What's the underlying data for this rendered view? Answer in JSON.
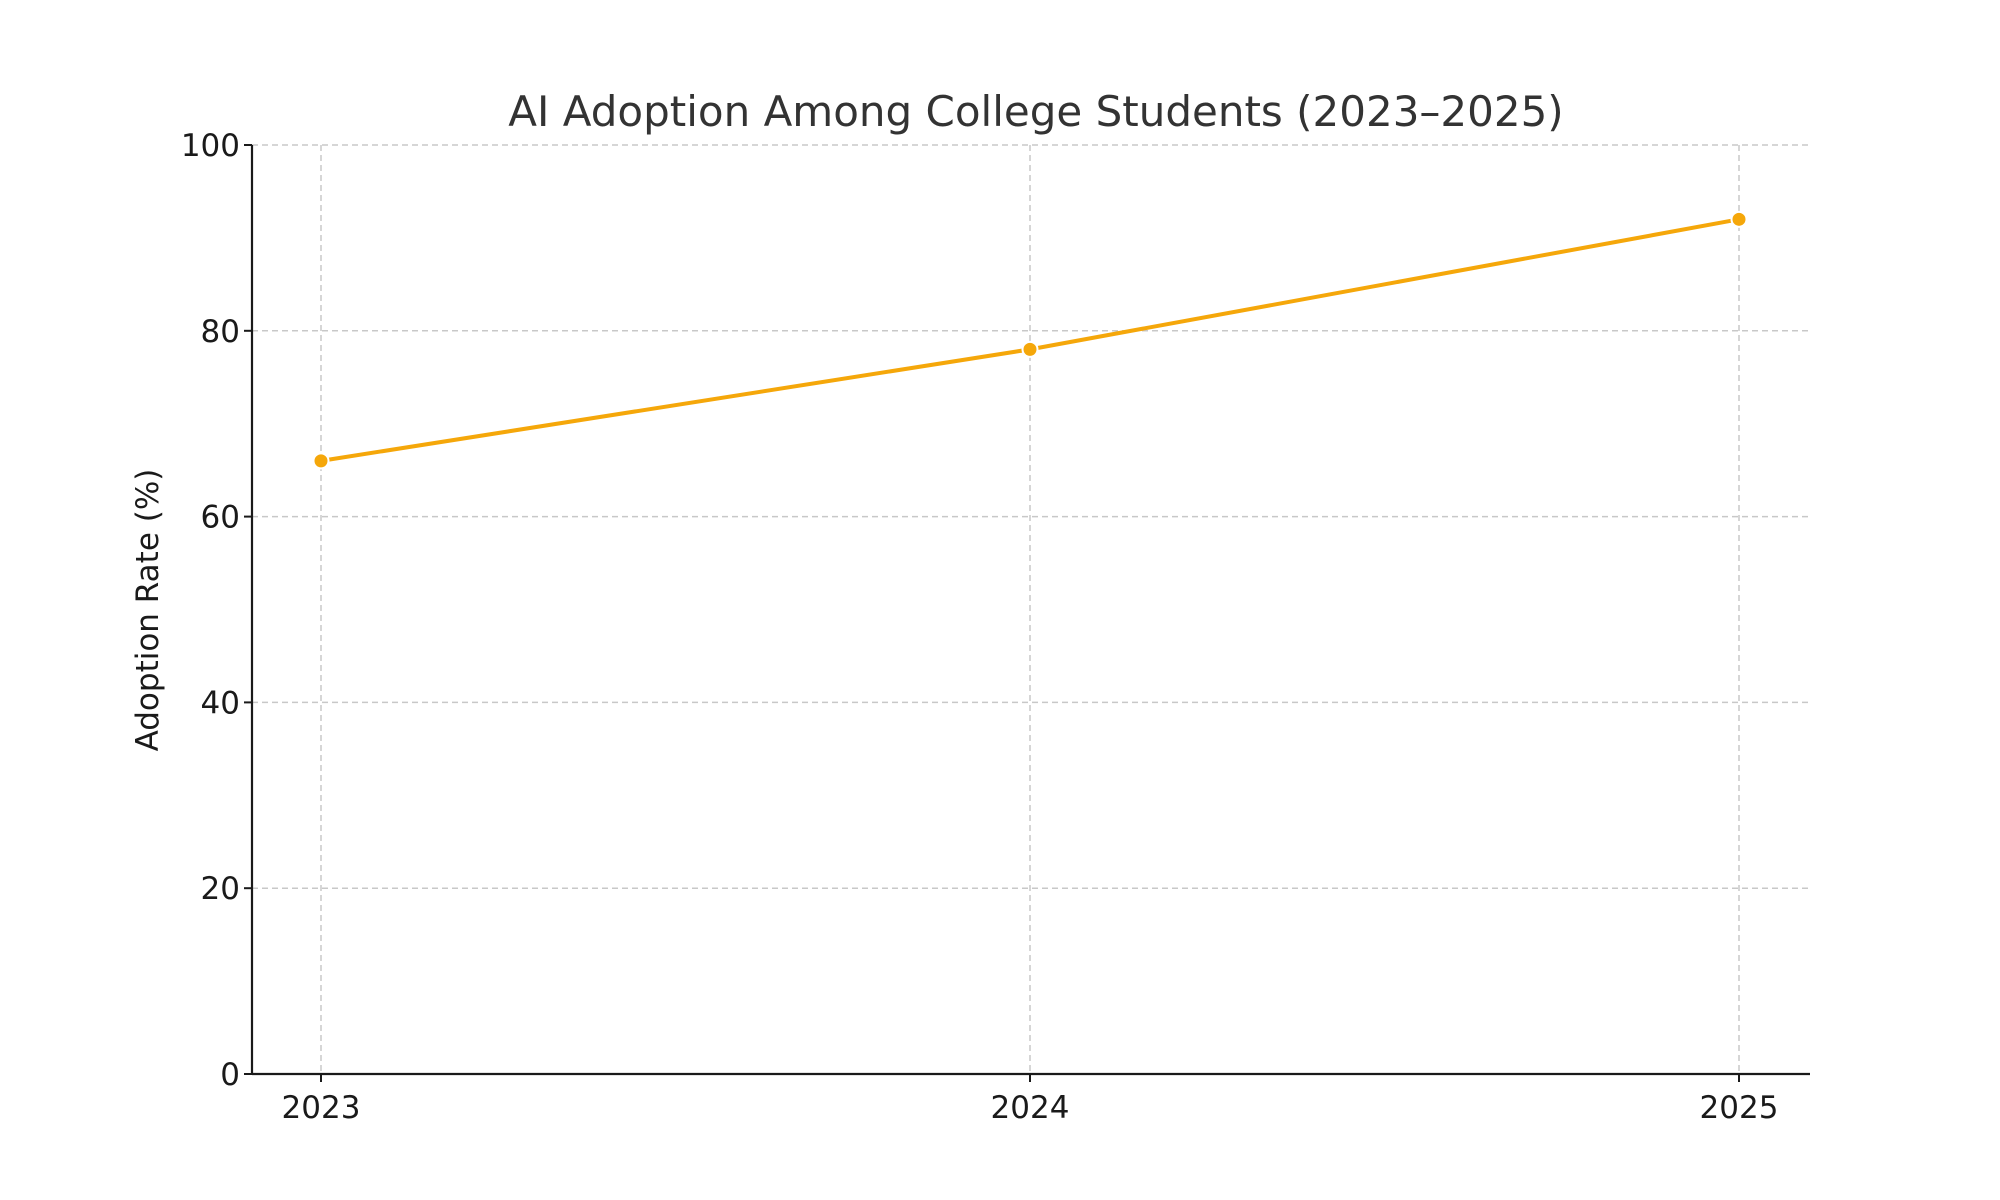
{
  "chart_data": {
    "type": "line",
    "title": "AI Adoption Among College Students (2023–2025)",
    "xlabel": "",
    "ylabel": "Adoption Rate (%)",
    "x": [
      "2023",
      "2024",
      "2025"
    ],
    "ylim": [
      0,
      100
    ],
    "yticks": [
      "0",
      "20",
      "40",
      "60",
      "80",
      "100"
    ],
    "grid": true,
    "series": [
      {
        "values": [
          66,
          78,
          92
        ],
        "color": "#F5A70A"
      }
    ]
  }
}
